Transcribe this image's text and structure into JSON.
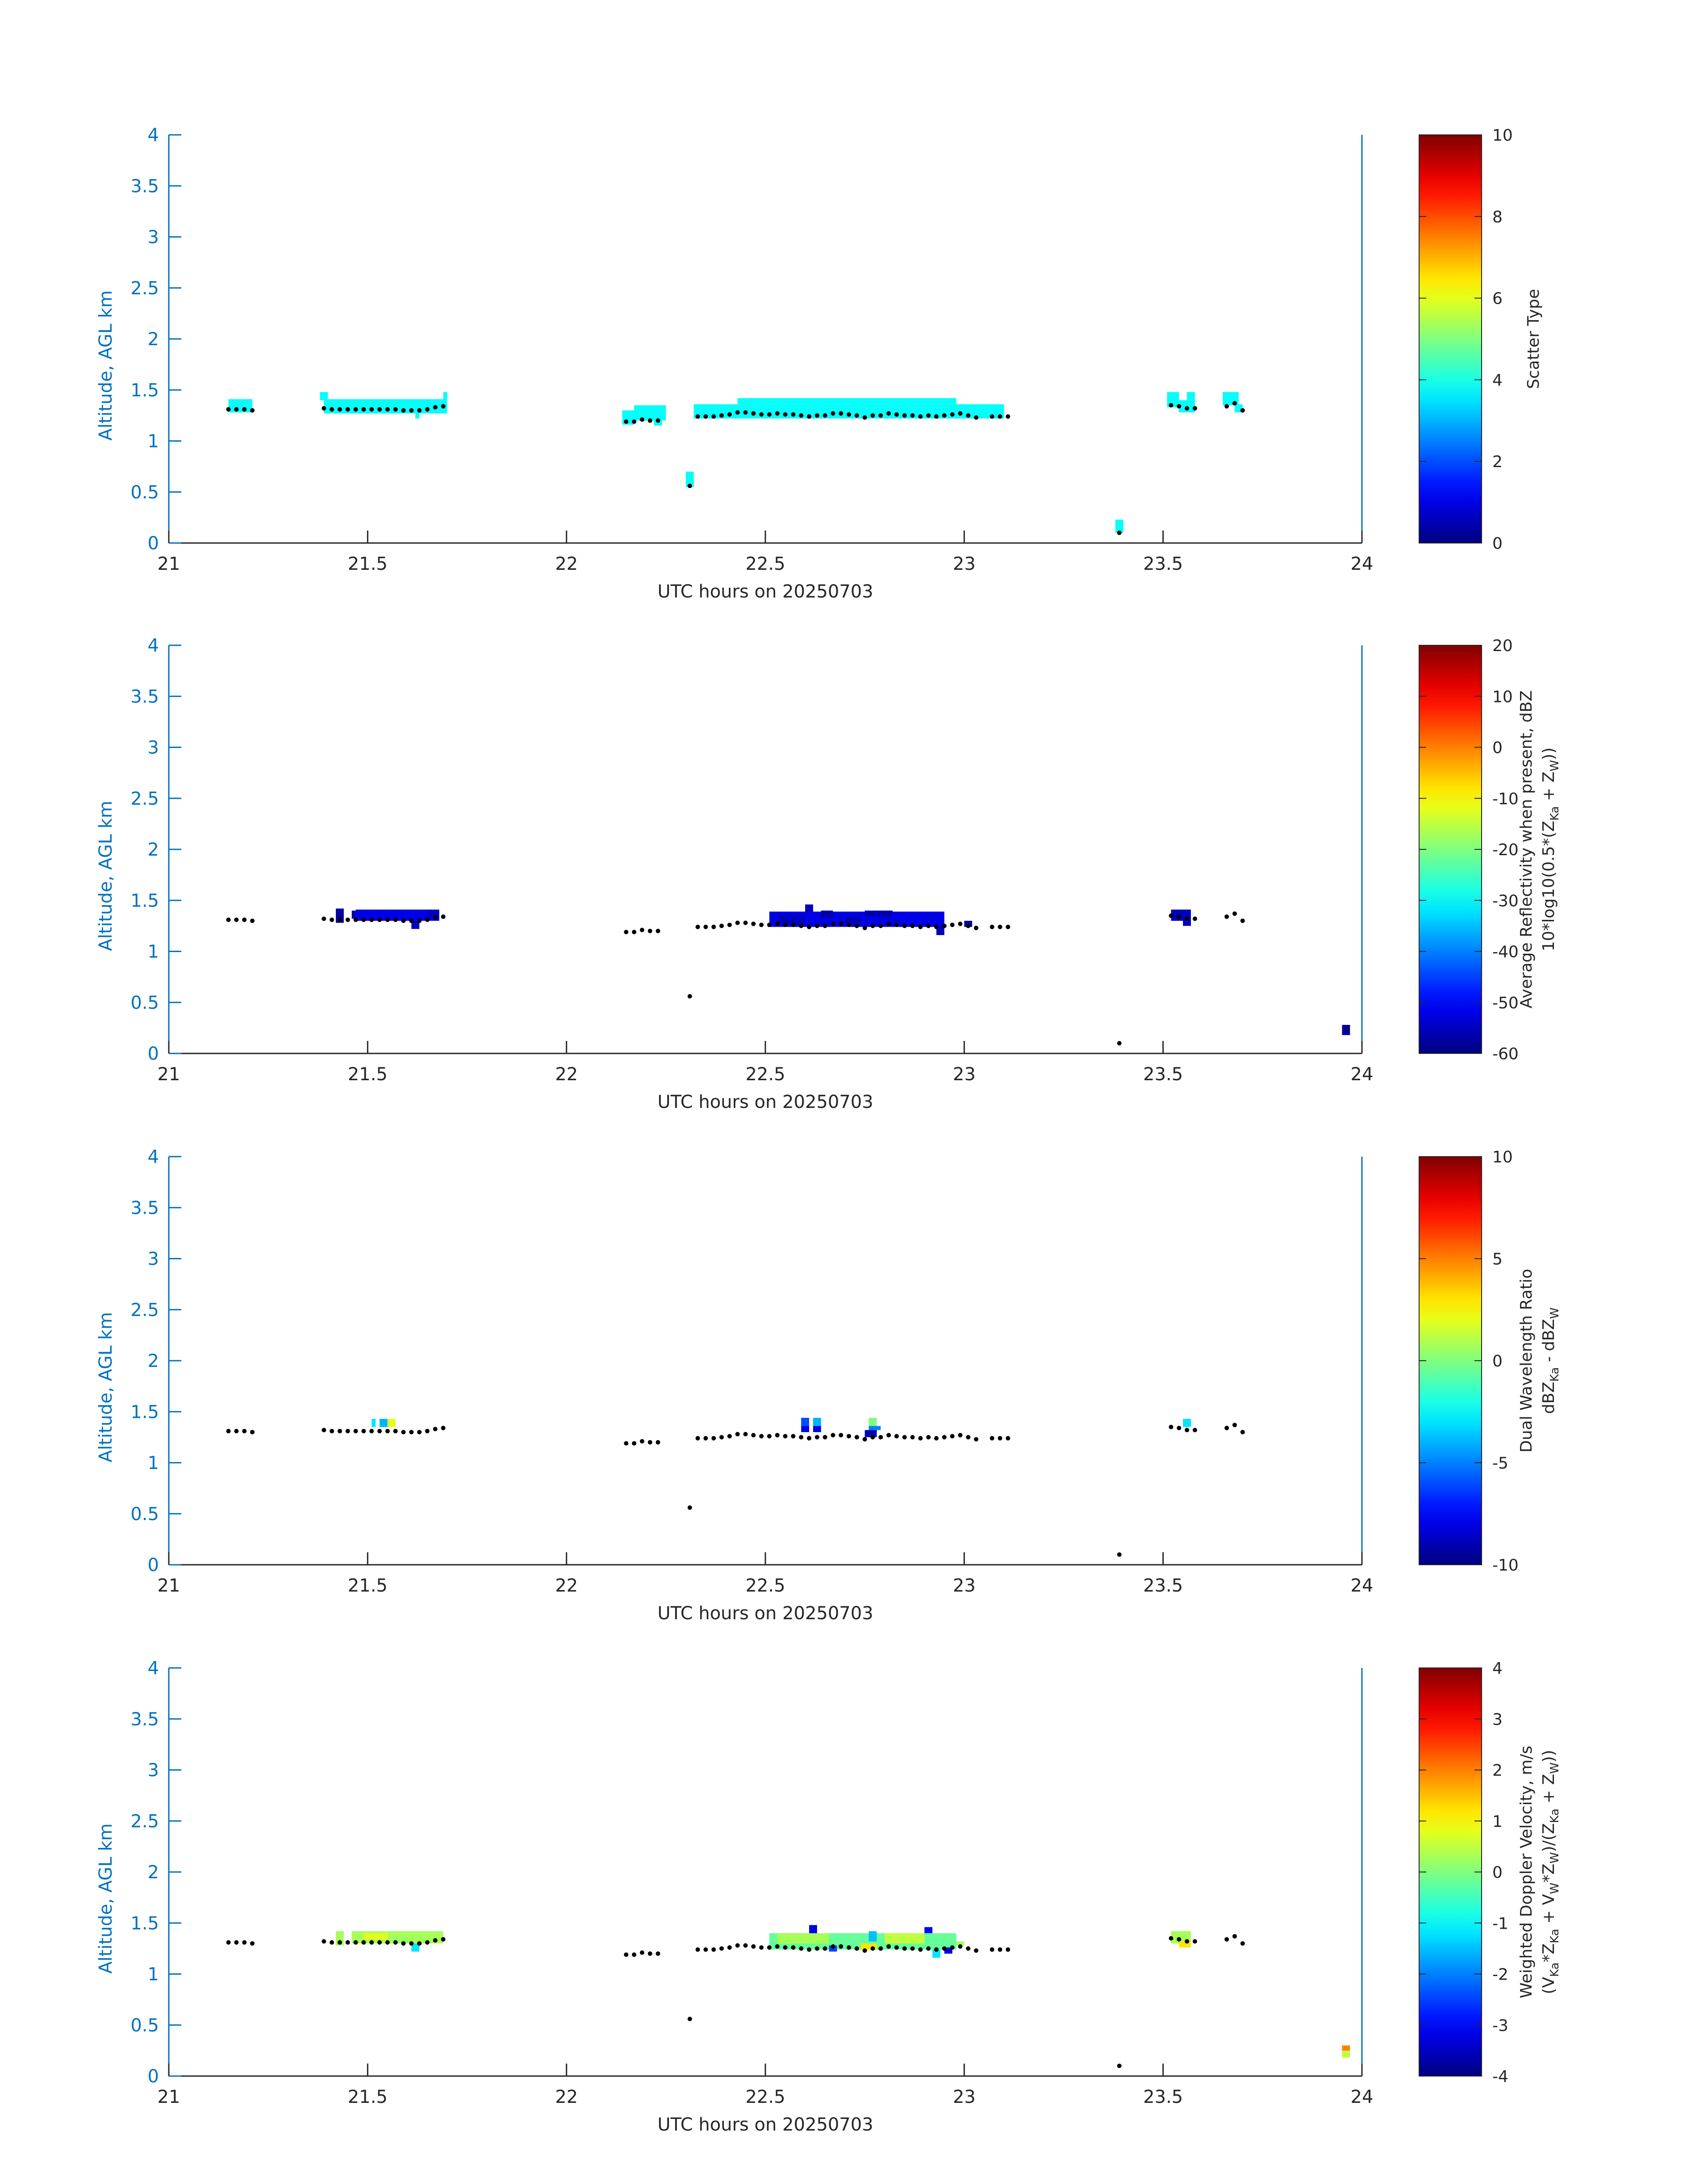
{
  "figure": {
    "xlabel": "UTC hours on 20250703",
    "ylabel": "Altitude, AGL km"
  },
  "axes": {
    "xlim": [
      21,
      24
    ],
    "ylim": [
      0,
      4
    ],
    "xticks": [
      "21",
      "21.5",
      "22",
      "22.5",
      "23",
      "23.5",
      "24"
    ],
    "yticks": [
      "0",
      "0.5",
      "1",
      "1.5",
      "2",
      "2.5",
      "3",
      "3.5",
      "4"
    ],
    "cloud_base_marker_color": "#000000",
    "axis_color": "#0072bd",
    "colormap": "jet"
  },
  "chart_data": [
    {
      "type": "heatmap",
      "xlabel": "UTC hours on 20250703",
      "ylabel": "Altitude, AGL km",
      "colorbar": {
        "label": "Scatter Type",
        "label2": "",
        "min": 0,
        "max": 10,
        "ticks": [
          "0",
          "2",
          "4",
          "6",
          "8",
          "10"
        ]
      },
      "cells": [
        [
          21.15,
          21.21,
          1.28,
          1.41,
          3.8
        ],
        [
          21.39,
          21.7,
          1.27,
          1.41,
          3.8
        ],
        [
          21.38,
          21.4,
          1.4,
          1.48,
          3.8
        ],
        [
          21.62,
          21.63,
          1.22,
          1.28,
          3.8
        ],
        [
          21.69,
          21.7,
          1.4,
          1.48,
          3.8
        ],
        [
          22.14,
          22.17,
          1.16,
          1.3,
          3.8
        ],
        [
          22.17,
          22.25,
          1.2,
          1.35,
          3.8
        ],
        [
          22.22,
          22.24,
          1.15,
          1.2,
          3.8
        ],
        [
          22.3,
          22.32,
          0.55,
          0.7,
          3.8
        ],
        [
          22.32,
          23.1,
          1.22,
          1.36,
          3.8
        ],
        [
          22.43,
          22.98,
          1.36,
          1.42,
          3.8
        ],
        [
          23.38,
          23.4,
          0.1,
          0.23,
          3.8
        ],
        [
          23.51,
          23.54,
          1.33,
          1.48,
          3.8
        ],
        [
          23.54,
          23.58,
          1.28,
          1.4,
          3.8
        ],
        [
          23.56,
          23.58,
          1.4,
          1.48,
          3.8
        ],
        [
          23.65,
          23.69,
          1.35,
          1.48,
          3.8
        ],
        [
          23.68,
          23.7,
          1.28,
          1.36,
          3.8
        ]
      ],
      "cloud_base": [
        [
          21.15,
          1.31
        ],
        [
          21.17,
          1.31
        ],
        [
          21.19,
          1.31
        ],
        [
          21.21,
          1.3
        ],
        [
          21.39,
          1.32
        ],
        [
          21.41,
          1.31
        ],
        [
          21.43,
          1.31
        ],
        [
          21.45,
          1.31
        ],
        [
          21.47,
          1.31
        ],
        [
          21.49,
          1.31
        ],
        [
          21.51,
          1.31
        ],
        [
          21.53,
          1.31
        ],
        [
          21.55,
          1.31
        ],
        [
          21.57,
          1.31
        ],
        [
          21.59,
          1.3
        ],
        [
          21.61,
          1.3
        ],
        [
          21.63,
          1.3
        ],
        [
          21.65,
          1.31
        ],
        [
          21.67,
          1.33
        ],
        [
          21.69,
          1.34
        ],
        [
          22.15,
          1.19
        ],
        [
          22.17,
          1.19
        ],
        [
          22.19,
          1.21
        ],
        [
          22.21,
          1.2
        ],
        [
          22.23,
          1.2
        ],
        [
          22.31,
          0.56
        ],
        [
          22.33,
          1.24
        ],
        [
          22.35,
          1.24
        ],
        [
          22.37,
          1.24
        ],
        [
          22.39,
          1.25
        ],
        [
          22.41,
          1.26
        ],
        [
          22.43,
          1.28
        ],
        [
          22.45,
          1.28
        ],
        [
          22.47,
          1.27
        ],
        [
          22.49,
          1.26
        ],
        [
          22.51,
          1.26
        ],
        [
          22.53,
          1.27
        ],
        [
          22.55,
          1.26
        ],
        [
          22.57,
          1.26
        ],
        [
          22.59,
          1.25
        ],
        [
          22.61,
          1.24
        ],
        [
          22.63,
          1.25
        ],
        [
          22.65,
          1.25
        ],
        [
          22.67,
          1.27
        ],
        [
          22.69,
          1.27
        ],
        [
          22.71,
          1.26
        ],
        [
          22.73,
          1.25
        ],
        [
          22.75,
          1.23
        ],
        [
          22.77,
          1.25
        ],
        [
          22.79,
          1.25
        ],
        [
          22.81,
          1.27
        ],
        [
          22.83,
          1.26
        ],
        [
          22.85,
          1.25
        ],
        [
          22.87,
          1.25
        ],
        [
          22.89,
          1.24
        ],
        [
          22.91,
          1.25
        ],
        [
          22.93,
          1.24
        ],
        [
          22.95,
          1.25
        ],
        [
          22.97,
          1.26
        ],
        [
          22.99,
          1.27
        ],
        [
          23.01,
          1.25
        ],
        [
          23.03,
          1.23
        ],
        [
          23.07,
          1.24
        ],
        [
          23.09,
          1.24
        ],
        [
          23.11,
          1.24
        ],
        [
          23.39,
          0.1
        ],
        [
          23.52,
          1.35
        ],
        [
          23.54,
          1.34
        ],
        [
          23.56,
          1.32
        ],
        [
          23.58,
          1.32
        ],
        [
          23.66,
          1.34
        ],
        [
          23.68,
          1.37
        ],
        [
          23.7,
          1.3
        ]
      ]
    },
    {
      "type": "heatmap",
      "xlabel": "UTC hours on 20250703",
      "ylabel": "Altitude, AGL km",
      "colorbar": {
        "label": "Average Reflectivity when present, dBZ",
        "label2": "10*log10(0.5*(Z",
        "min": -60,
        "max": 20,
        "ticks": [
          "-60",
          "-50",
          "-40",
          "-30",
          "-20",
          "-10",
          "0",
          "10",
          "20"
        ]
      },
      "cells": [
        [
          21.42,
          21.44,
          1.28,
          1.42,
          -57
        ],
        [
          21.46,
          21.47,
          1.32,
          1.4,
          -57
        ],
        [
          21.47,
          21.68,
          1.3,
          1.41,
          -52
        ],
        [
          21.61,
          21.63,
          1.22,
          1.3,
          -55
        ],
        [
          21.65,
          21.68,
          1.32,
          1.4,
          -55
        ],
        [
          22.51,
          22.95,
          1.24,
          1.39,
          -52
        ],
        [
          22.53,
          22.6,
          1.26,
          1.35,
          -55
        ],
        [
          22.6,
          22.62,
          1.38,
          1.46,
          -55
        ],
        [
          22.64,
          22.67,
          1.33,
          1.4,
          -57
        ],
        [
          22.7,
          22.74,
          1.28,
          1.34,
          -56
        ],
        [
          22.75,
          22.82,
          1.34,
          1.4,
          -56
        ],
        [
          22.93,
          22.95,
          1.16,
          1.25,
          -55
        ],
        [
          23.0,
          23.02,
          1.24,
          1.3,
          -57
        ],
        [
          23.52,
          23.57,
          1.3,
          1.41,
          -55
        ],
        [
          23.55,
          23.57,
          1.25,
          1.32,
          -55
        ],
        [
          23.95,
          23.97,
          0.18,
          0.28,
          -58
        ]
      ]
    },
    {
      "type": "heatmap",
      "xlabel": "UTC hours on 20250703",
      "ylabel": "Altitude, AGL km",
      "colorbar": {
        "label": "Dual Wavelength Ratio",
        "label2": "dBZ",
        "min": -10,
        "max": 10,
        "ticks": [
          "-10",
          "-5",
          "0",
          "5",
          "10"
        ]
      },
      "cells": [
        [
          21.51,
          21.52,
          1.35,
          1.43,
          -3
        ],
        [
          21.53,
          21.55,
          1.35,
          1.43,
          -4
        ],
        [
          21.55,
          21.57,
          1.35,
          1.43,
          2
        ],
        [
          22.59,
          22.61,
          1.36,
          1.44,
          -6
        ],
        [
          22.62,
          22.64,
          1.36,
          1.44,
          -4
        ],
        [
          22.59,
          22.61,
          1.3,
          1.36,
          -8
        ],
        [
          22.62,
          22.64,
          1.3,
          1.36,
          -8
        ],
        [
          22.76,
          22.78,
          1.36,
          1.44,
          0
        ],
        [
          22.76,
          22.79,
          1.32,
          1.36,
          -5
        ],
        [
          22.75,
          22.78,
          1.25,
          1.32,
          -9
        ],
        [
          23.55,
          23.57,
          1.35,
          1.43,
          -3
        ]
      ]
    },
    {
      "type": "heatmap",
      "xlabel": "UTC hours on 20250703",
      "ylabel": "Altitude, AGL km",
      "colorbar": {
        "label": "Weighted Doppler Velocity, m/s",
        "label2": "(V",
        "min": -4,
        "max": 4,
        "ticks": [
          "-4",
          "-3",
          "-2",
          "-1",
          "0",
          "1",
          "2",
          "3",
          "4"
        ]
      },
      "cells": [
        [
          21.42,
          21.44,
          1.28,
          1.42,
          0.3
        ],
        [
          21.46,
          21.69,
          1.3,
          1.42,
          0.3
        ],
        [
          21.49,
          21.55,
          1.34,
          1.4,
          0.8
        ],
        [
          21.61,
          21.63,
          1.22,
          1.3,
          -1.2
        ],
        [
          21.56,
          21.6,
          1.3,
          1.36,
          0.2
        ],
        [
          22.51,
          22.98,
          1.24,
          1.4,
          -0.2
        ],
        [
          22.53,
          22.66,
          1.3,
          1.4,
          0.3
        ],
        [
          22.61,
          22.63,
          1.4,
          1.48,
          -3.2
        ],
        [
          22.66,
          22.68,
          1.22,
          1.28,
          -2.5
        ],
        [
          22.76,
          22.78,
          1.32,
          1.42,
          -1.5
        ],
        [
          22.74,
          22.78,
          1.24,
          1.3,
          1.2
        ],
        [
          22.8,
          22.9,
          1.3,
          1.4,
          0.5
        ],
        [
          22.9,
          22.92,
          1.4,
          1.46,
          -3.0
        ],
        [
          22.92,
          22.94,
          1.16,
          1.24,
          -1.2
        ],
        [
          22.95,
          22.97,
          1.2,
          1.26,
          -3.2
        ],
        [
          22.98,
          23.0,
          1.28,
          1.32,
          0.3
        ],
        [
          23.52,
          23.57,
          1.3,
          1.42,
          0.3
        ],
        [
          23.54,
          23.57,
          1.26,
          1.32,
          1.2
        ],
        [
          23.95,
          23.97,
          0.18,
          0.25,
          0.5
        ],
        [
          23.95,
          23.97,
          0.25,
          0.3,
          2.0
        ]
      ]
    }
  ]
}
